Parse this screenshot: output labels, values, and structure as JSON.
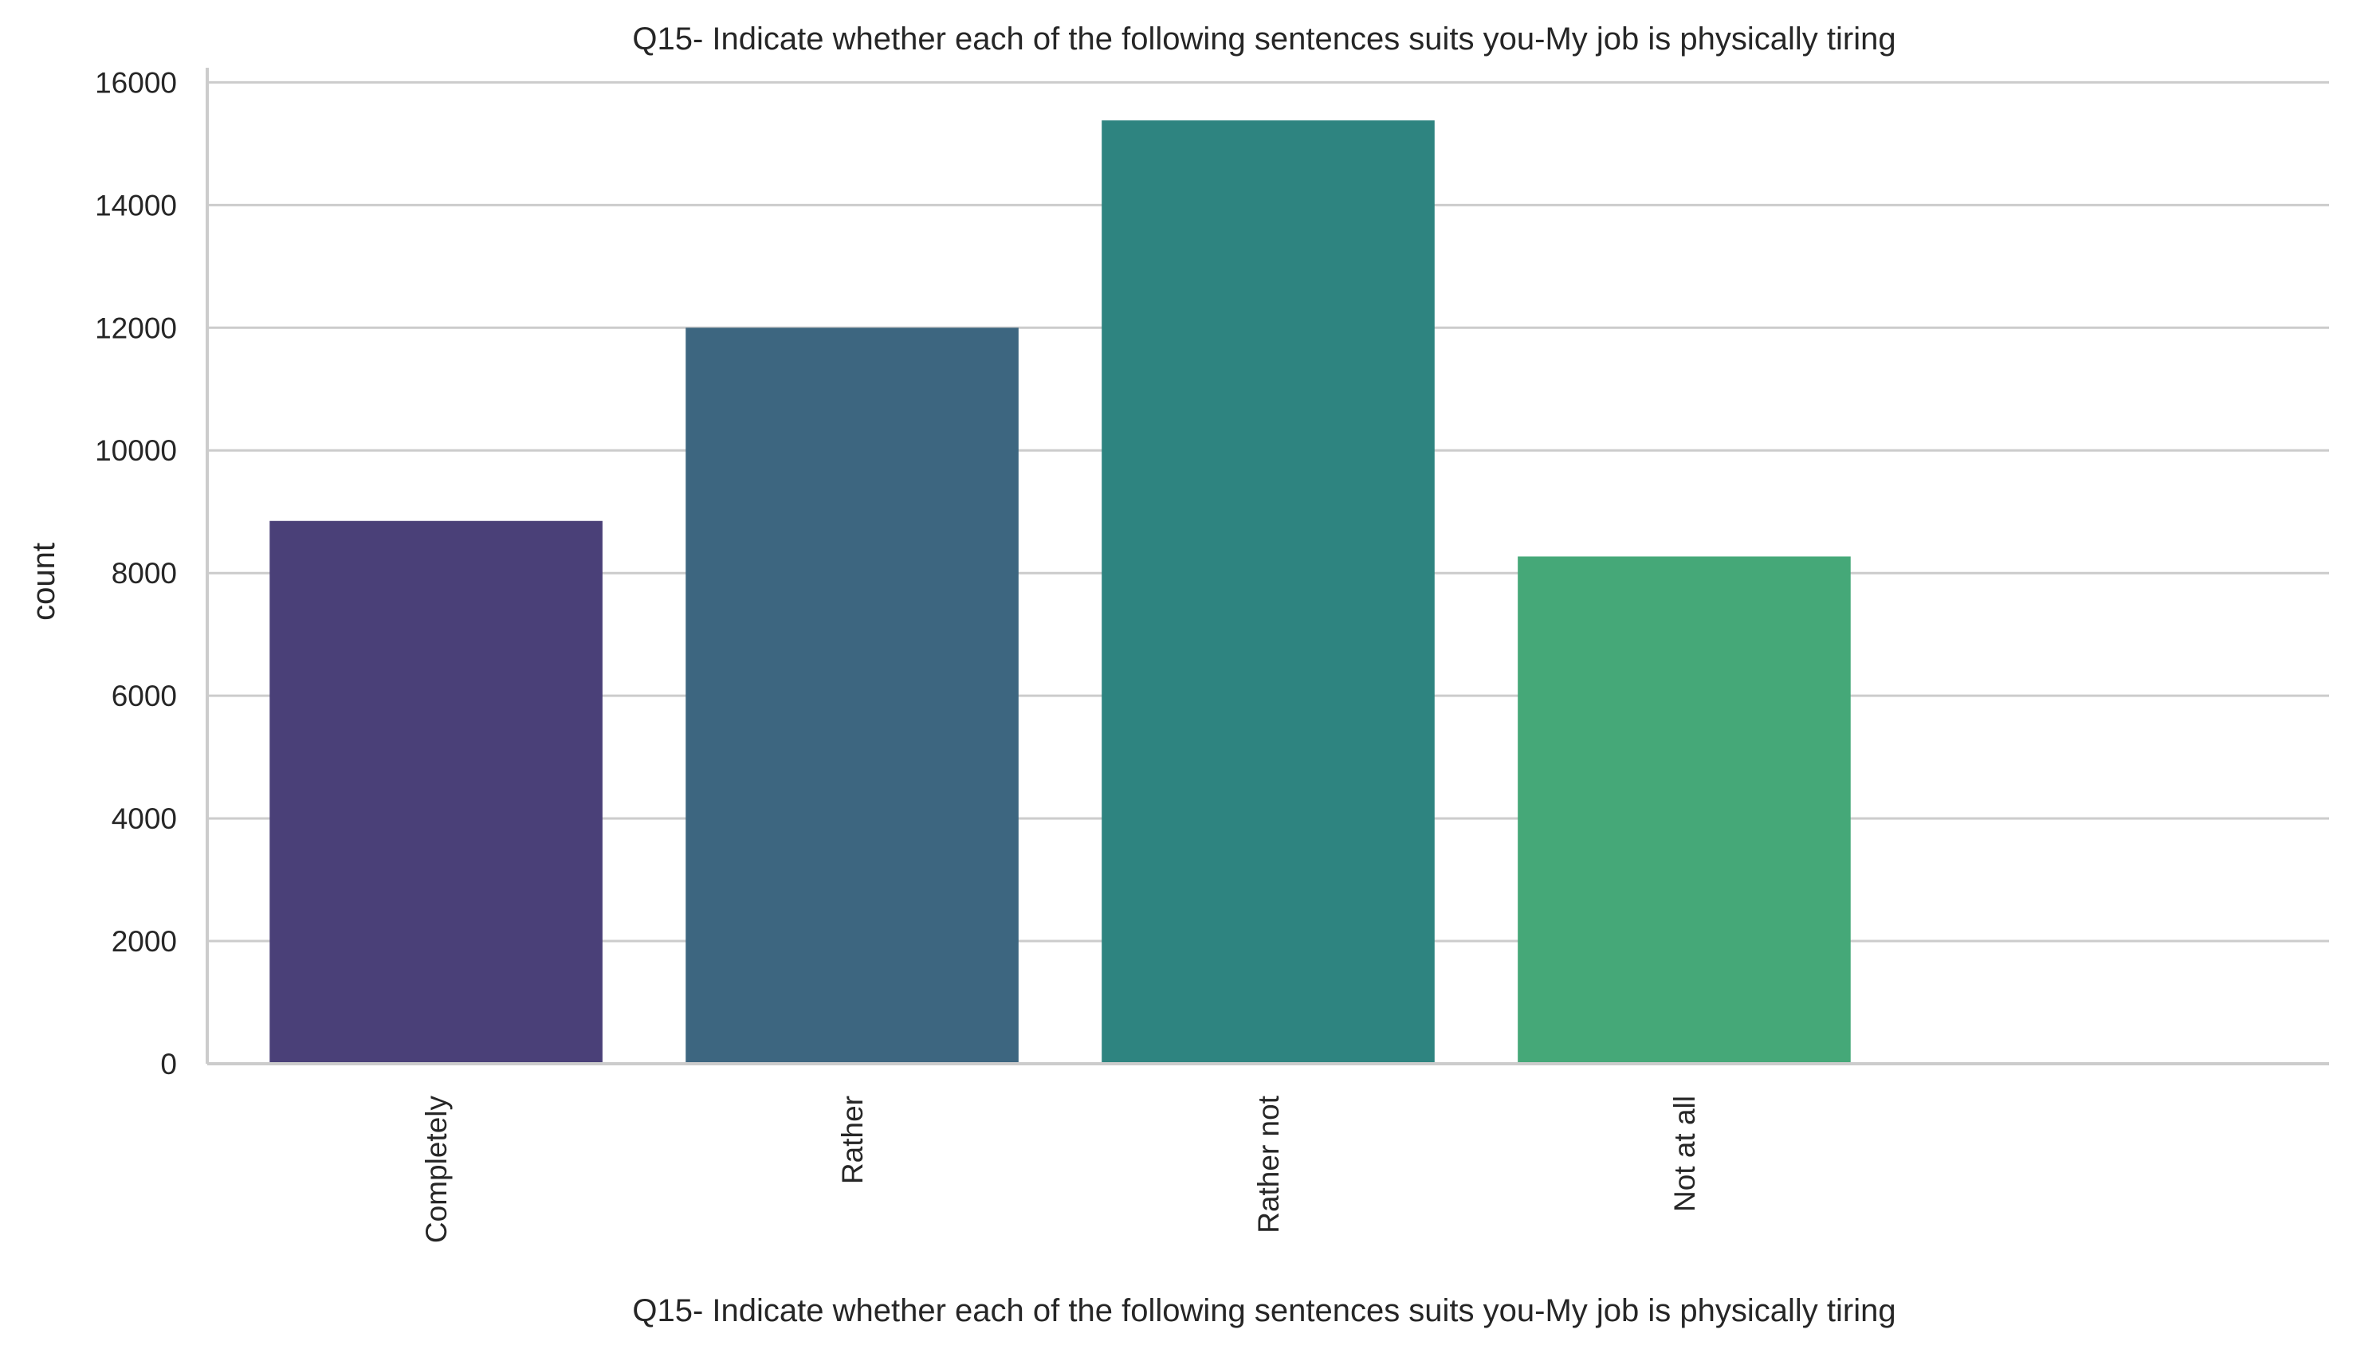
{
  "chart_data": {
    "type": "bar",
    "title": "Q15- Indicate whether each of the following sentences suits you-My job is physically tiring",
    "xlabel": "Q15- Indicate whether each of the following sentences suits you-My job is physically tiring",
    "ylabel": "count",
    "categories": [
      "Completely",
      "Rather",
      "Rather not",
      "Not at all",
      ""
    ],
    "values": [
      8850,
      12000,
      15380,
      8270,
      0
    ],
    "colors": [
      "#4a4078",
      "#3d6680",
      "#2e8480",
      "#45a878",
      "#000000"
    ],
    "ylim": [
      0,
      16200
    ],
    "yticks": [
      0,
      2000,
      4000,
      6000,
      8000,
      10000,
      12000,
      14000,
      16000
    ],
    "ytick_labels": [
      "0",
      "2000",
      "4000",
      "6000",
      "8000",
      "10000",
      "12000",
      "14000",
      "16000"
    ],
    "grid": "y",
    "axis_color": "#cccccc",
    "grid_color": "#cccccc"
  }
}
